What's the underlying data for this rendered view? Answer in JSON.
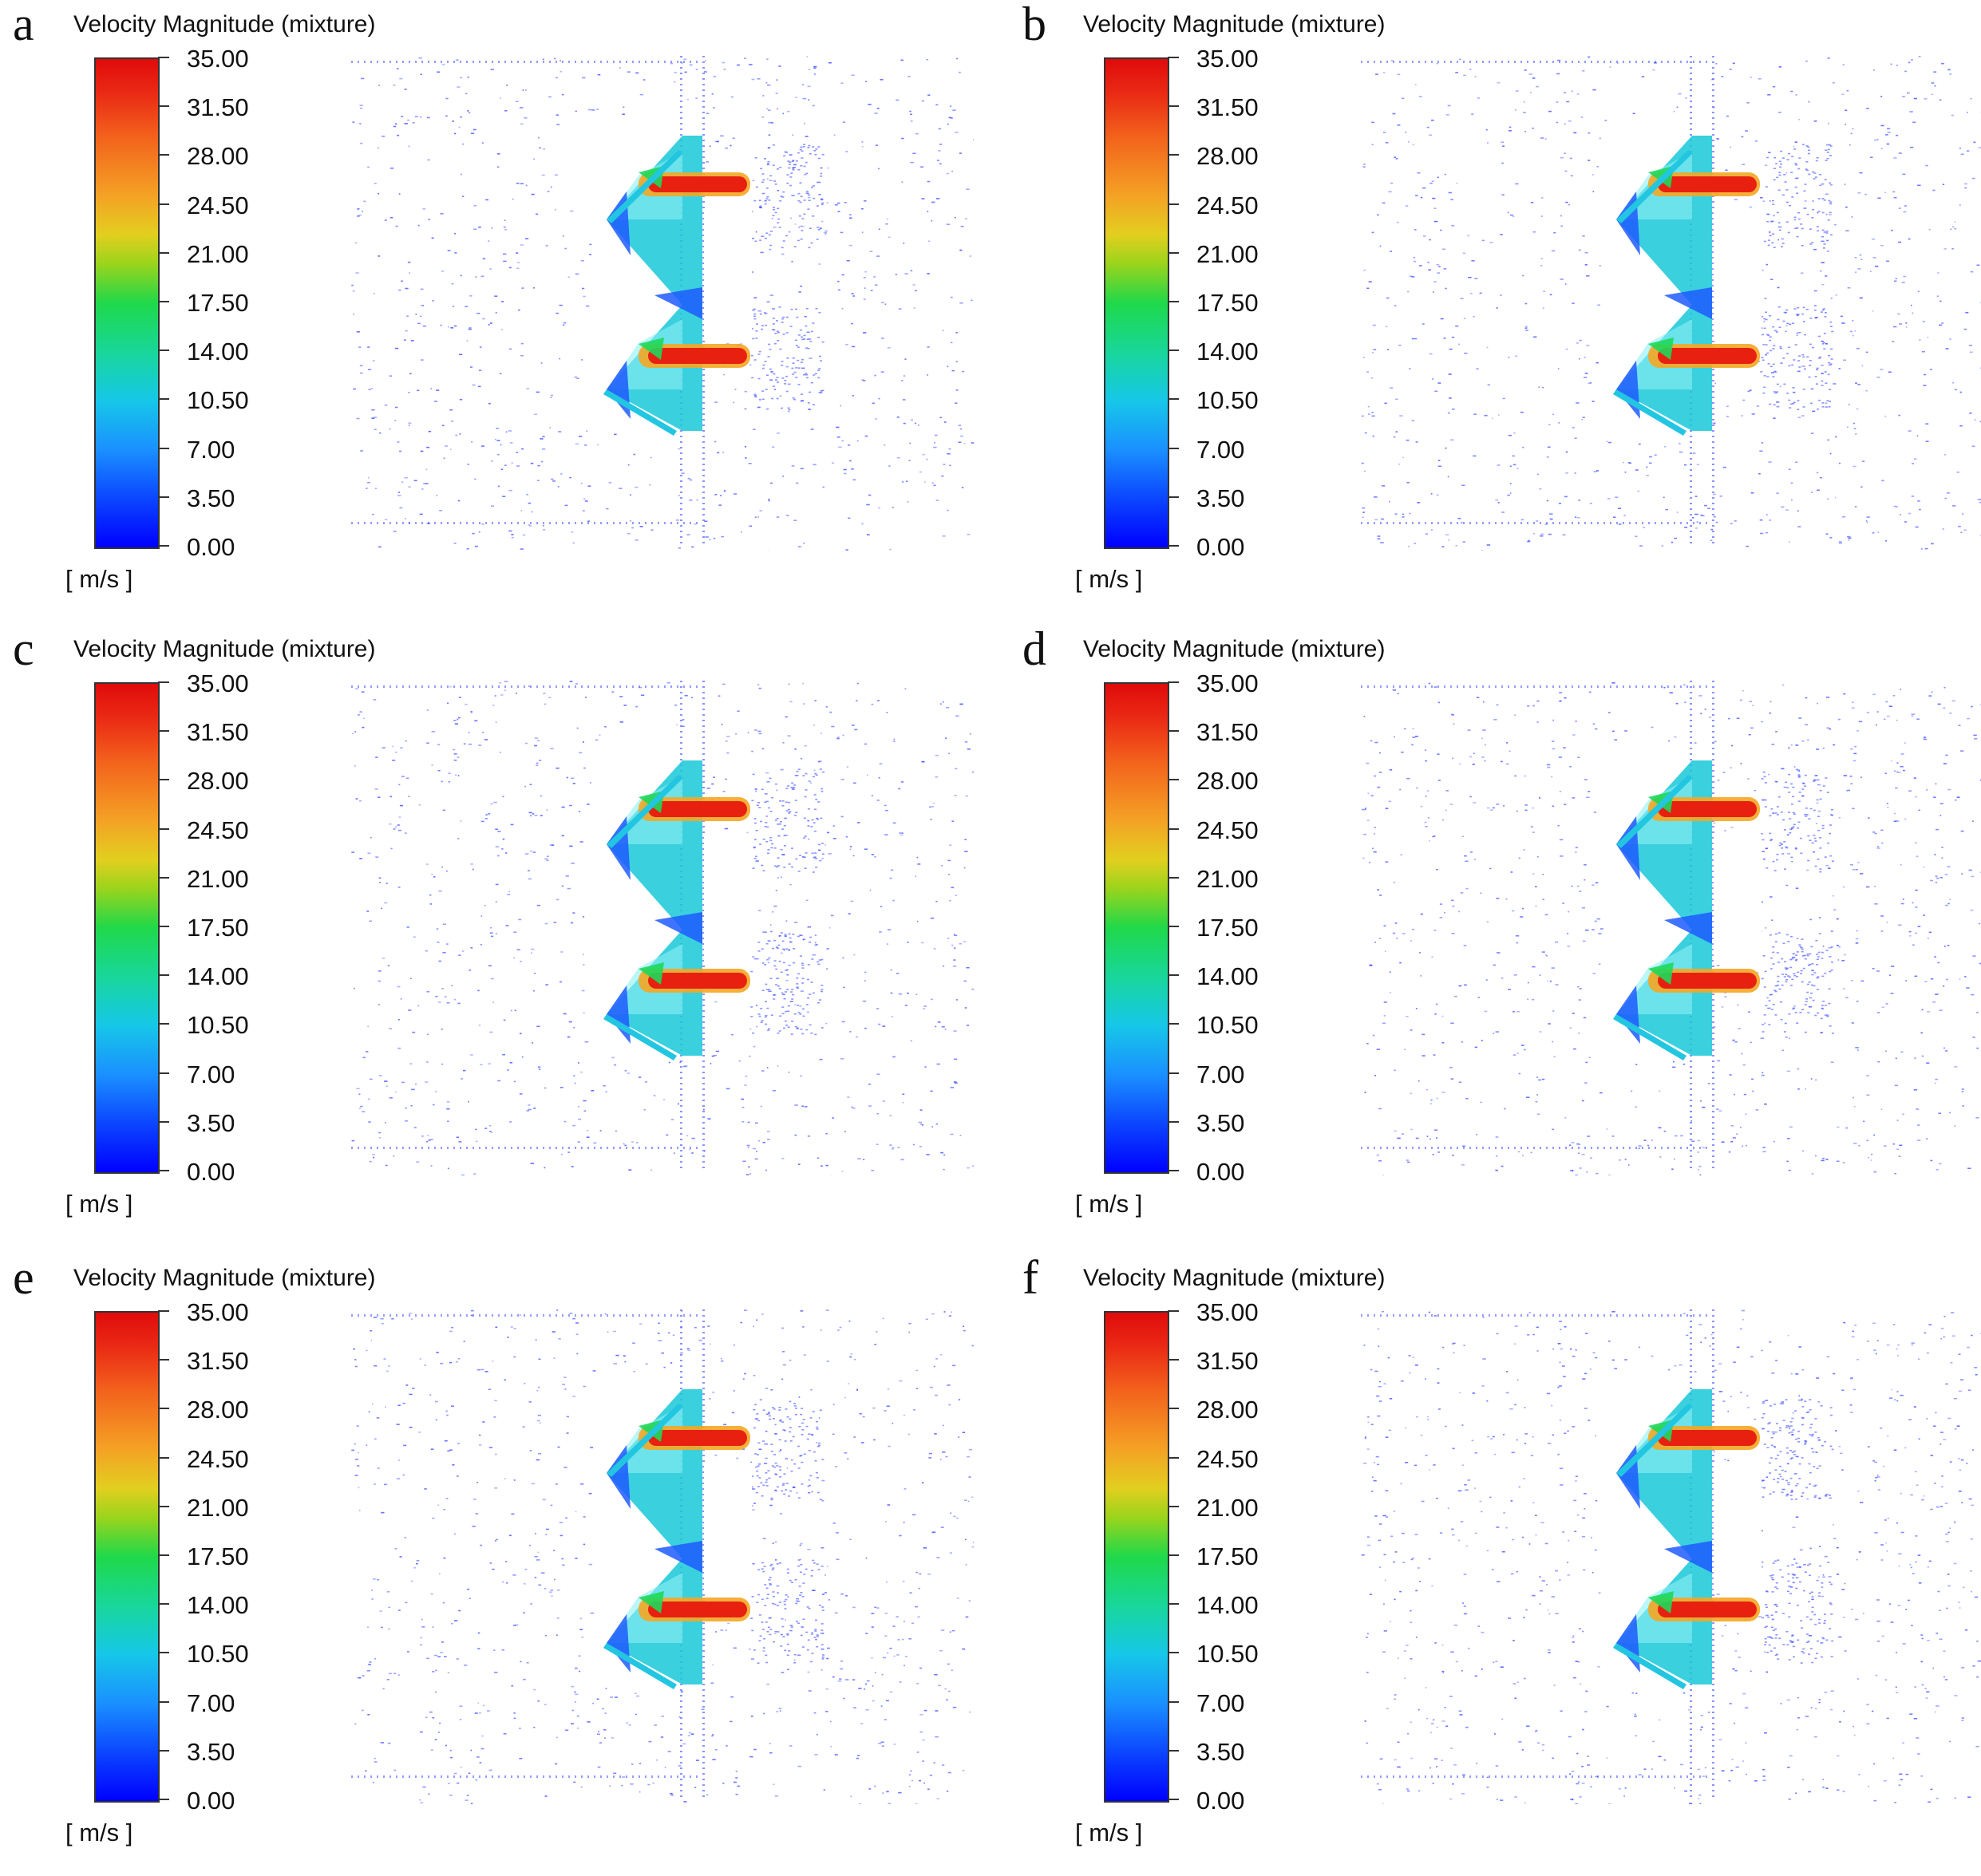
{
  "figure": {
    "colorbar": {
      "title": "Velocity Magnitude (mixture)",
      "unit": "[ m/s ]",
      "min": 0.0,
      "max": 35.0,
      "tick_labels": [
        "35.00",
        "31.50",
        "28.00",
        "24.50",
        "21.00",
        "17.50",
        "14.00",
        "10.50",
        "7.00",
        "3.50",
        "0.00"
      ]
    },
    "panels": [
      {
        "letter": "a"
      },
      {
        "letter": "b"
      },
      {
        "letter": "c"
      },
      {
        "letter": "d"
      },
      {
        "letter": "e"
      },
      {
        "letter": "f"
      }
    ]
  },
  "colors": {
    "sparse_vectors": "#2b3cff",
    "jet": "#e8200f",
    "recirculation": "#18c8d8",
    "wall_light": "#ffffff"
  }
}
